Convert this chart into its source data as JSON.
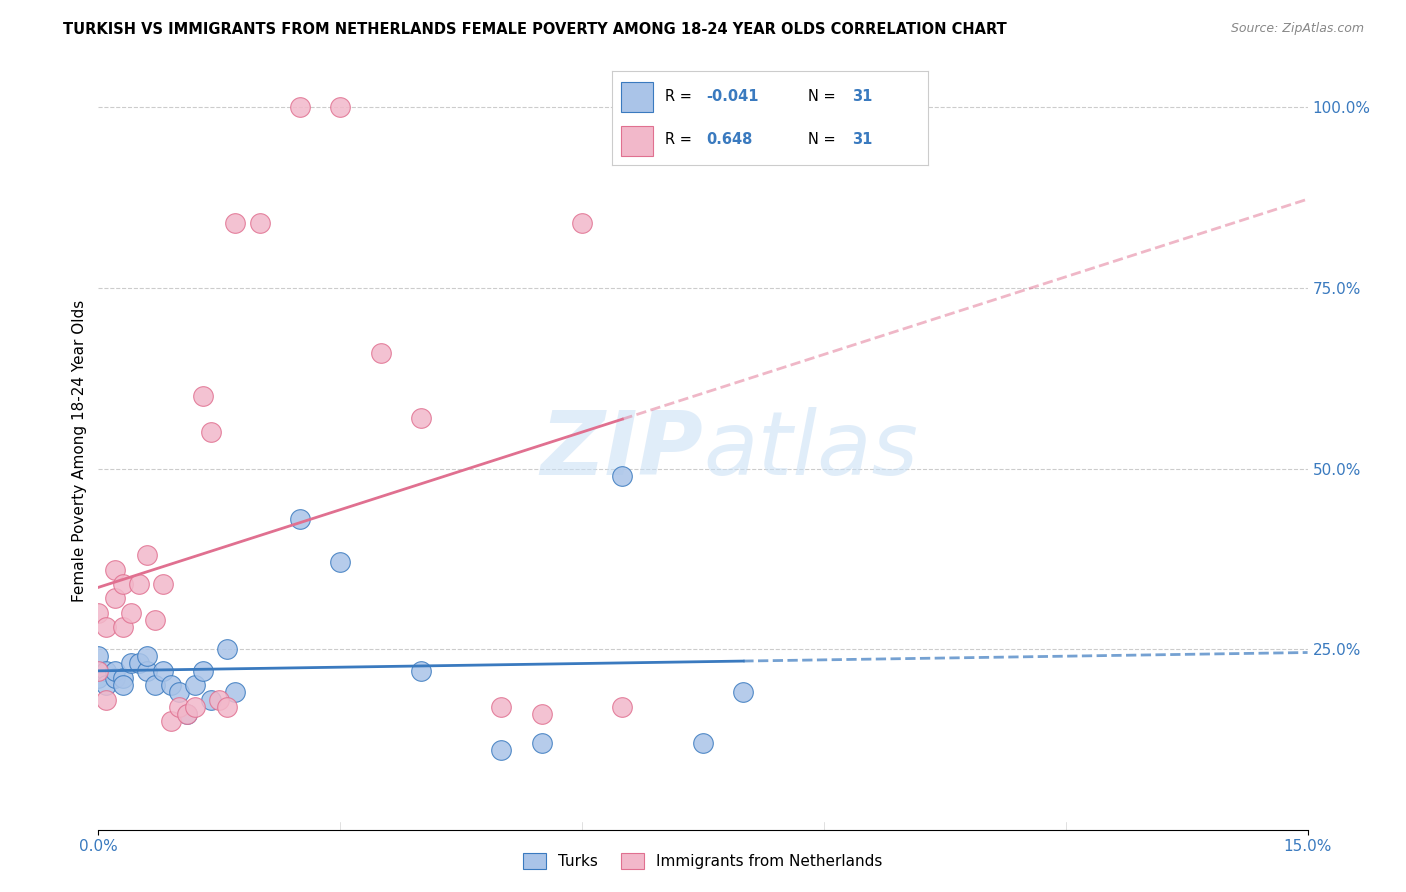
{
  "title": "TURKISH VS IMMIGRANTS FROM NETHERLANDS FEMALE POVERTY AMONG 18-24 YEAR OLDS CORRELATION CHART",
  "source": "Source: ZipAtlas.com",
  "ylabel": "Female Poverty Among 18-24 Year Olds",
  "turks_color": "#aac4e8",
  "netherlands_color": "#f2b8ca",
  "turks_line_color": "#3a7abf",
  "netherlands_line_color": "#e07090",
  "turks_R": "-0.041",
  "turks_N": "31",
  "netherlands_R": "0.648",
  "netherlands_N": "31",
  "legend_label_turks": "Turks",
  "legend_label_netherlands": "Immigrants from Netherlands",
  "watermark_zip": "ZIP",
  "watermark_atlas": "atlas",
  "xlim": [
    0.0,
    0.15
  ],
  "ylim": [
    0.0,
    1.05
  ],
  "turks_x": [
    0.0,
    0.0,
    0.0,
    0.001,
    0.001,
    0.002,
    0.002,
    0.003,
    0.003,
    0.004,
    0.005,
    0.006,
    0.006,
    0.007,
    0.008,
    0.009,
    0.01,
    0.011,
    0.012,
    0.013,
    0.014,
    0.016,
    0.017,
    0.025,
    0.03,
    0.04,
    0.05,
    0.055,
    0.065,
    0.075,
    0.08
  ],
  "turks_y": [
    0.22,
    0.24,
    0.21,
    0.22,
    0.2,
    0.21,
    0.22,
    0.21,
    0.2,
    0.23,
    0.23,
    0.22,
    0.24,
    0.2,
    0.22,
    0.2,
    0.19,
    0.16,
    0.2,
    0.22,
    0.18,
    0.25,
    0.19,
    0.43,
    0.37,
    0.22,
    0.11,
    0.12,
    0.49,
    0.12,
    0.19
  ],
  "netherlands_x": [
    0.0,
    0.0,
    0.001,
    0.001,
    0.002,
    0.002,
    0.003,
    0.003,
    0.004,
    0.005,
    0.006,
    0.007,
    0.008,
    0.009,
    0.01,
    0.011,
    0.012,
    0.013,
    0.014,
    0.015,
    0.016,
    0.017,
    0.02,
    0.025,
    0.03,
    0.035,
    0.04,
    0.05,
    0.055,
    0.06,
    0.065
  ],
  "netherlands_y": [
    0.22,
    0.3,
    0.18,
    0.28,
    0.36,
    0.32,
    0.34,
    0.28,
    0.3,
    0.34,
    0.38,
    0.29,
    0.34,
    0.15,
    0.17,
    0.16,
    0.17,
    0.6,
    0.55,
    0.18,
    0.17,
    0.84,
    0.84,
    1.0,
    1.0,
    0.66,
    0.57,
    0.17,
    0.16,
    0.84,
    0.17
  ]
}
